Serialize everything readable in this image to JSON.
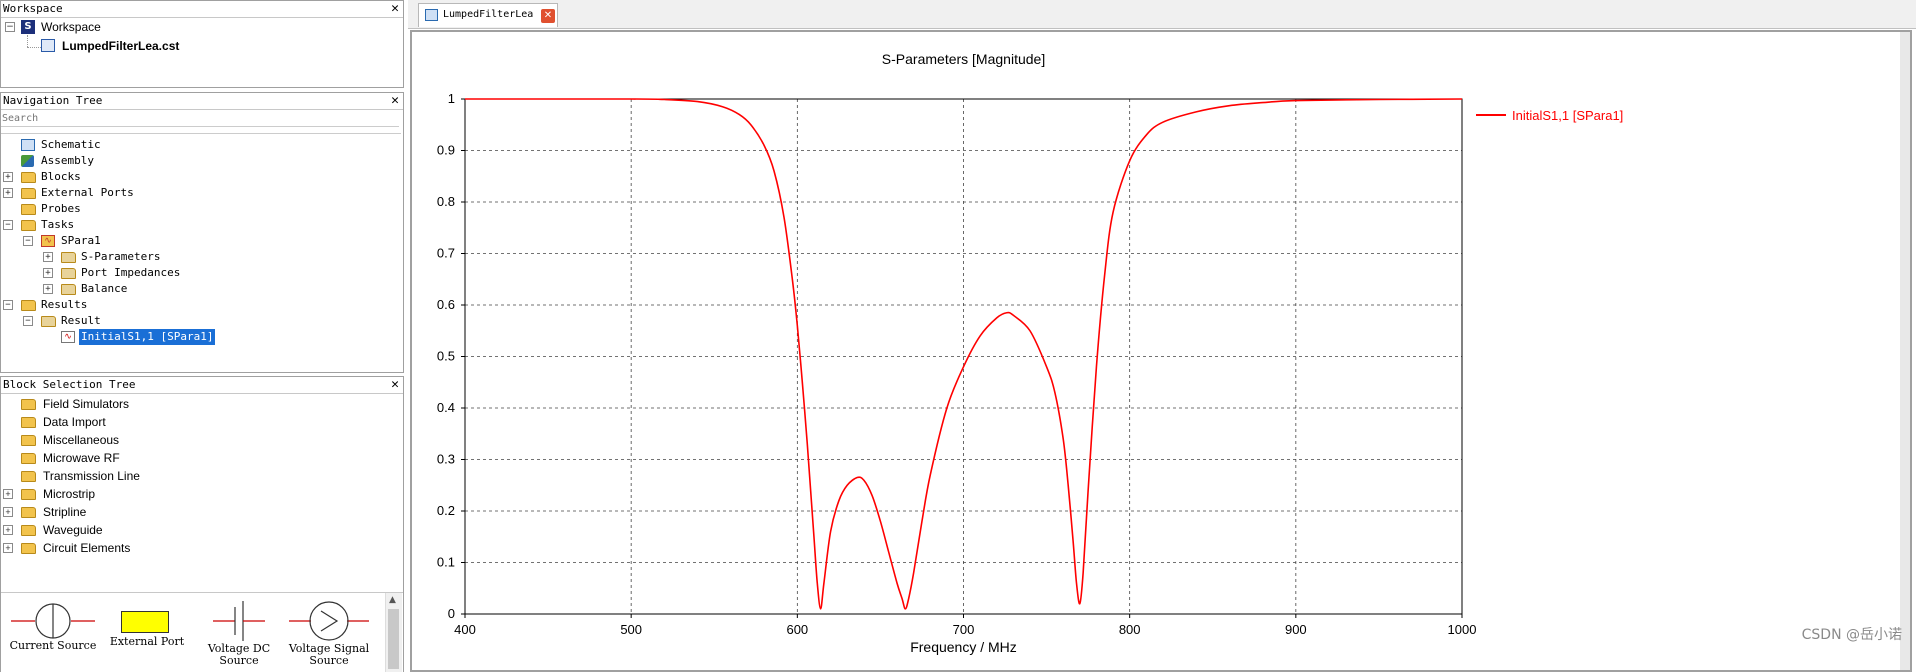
{
  "workspace_panel": {
    "title": "Workspace",
    "root_label": "Workspace",
    "file_label": "LumpedFilterLea.cst"
  },
  "nav_panel": {
    "title": "Navigation Tree",
    "search_placeholder": "Search",
    "items": [
      {
        "label": "Schematic",
        "icon": "schematic-icon"
      },
      {
        "label": "Assembly",
        "icon": "assembly-icon"
      },
      {
        "label": "Blocks",
        "icon": "folder-icon"
      },
      {
        "label": "External Ports",
        "icon": "folder-icon"
      },
      {
        "label": "Probes",
        "icon": "folder-icon"
      },
      {
        "label": "Tasks",
        "icon": "folder-icon"
      },
      {
        "label": "SPara1",
        "icon": "task-icon"
      },
      {
        "label": "S-Parameters",
        "icon": "result-folder-icon"
      },
      {
        "label": "Port Impedances",
        "icon": "result-folder-icon"
      },
      {
        "label": "Balance",
        "icon": "result-folder-icon"
      },
      {
        "label": "Results",
        "icon": "folder-icon"
      },
      {
        "label": "Result",
        "icon": "result-folder-icon"
      },
      {
        "label": "InitialS1,1 [SPara1]",
        "icon": "curve-icon"
      }
    ]
  },
  "block_panel": {
    "title": "Block Selection Tree",
    "items": [
      {
        "label": "Field Simulators"
      },
      {
        "label": "Data Import"
      },
      {
        "label": "Miscellaneous"
      },
      {
        "label": "Microwave RF"
      },
      {
        "label": "Transmission Line"
      },
      {
        "label": "Microstrip"
      },
      {
        "label": "Stripline"
      },
      {
        "label": "Waveguide"
      },
      {
        "label": "Circuit Elements"
      }
    ],
    "palette": [
      {
        "label": "Current Source"
      },
      {
        "label": "External Port"
      },
      {
        "label": "Voltage DC Source"
      },
      {
        "label": "Voltage Signal Source"
      }
    ]
  },
  "editor_tab": {
    "label": "LumpedFilterLea"
  },
  "watermark": "CSDN @岳小诺",
  "colors": {
    "curve": "#ff0000",
    "selection": "#1a6fd6",
    "folder": "#f2c34c"
  },
  "chart_data": {
    "type": "line",
    "title": "S-Parameters [Magnitude]",
    "xlabel": "Frequency / MHz",
    "ylabel": "",
    "xlim": [
      400,
      1000
    ],
    "ylim": [
      0,
      1
    ],
    "xticks": [
      400,
      500,
      600,
      700,
      800,
      900,
      1000
    ],
    "yticks": [
      0,
      0.1,
      0.2,
      0.3,
      0.4,
      0.5,
      0.6,
      0.7,
      0.8,
      0.9,
      1
    ],
    "grid": true,
    "legend_position": "top-right",
    "series": [
      {
        "name": "InitialS1,1 [SPara1]",
        "color": "#ff0000",
        "x": [
          400,
          500,
          520,
          540,
          555,
          565,
          572,
          580,
          586,
          592,
          597,
          600,
          603,
          606,
          608,
          610,
          612,
          614,
          616,
          620,
          625,
          630,
          636,
          640,
          645,
          650,
          655,
          660,
          663,
          665,
          667,
          670,
          675,
          680,
          690,
          700,
          710,
          720,
          726,
          730,
          740,
          750,
          755,
          760,
          763,
          766,
          768,
          770,
          772,
          775,
          780,
          785,
          790,
          800,
          810,
          820,
          840,
          860,
          880,
          900,
          950,
          1000
        ],
        "y": [
          1,
          1,
          0.999,
          0.995,
          0.985,
          0.97,
          0.95,
          0.91,
          0.86,
          0.77,
          0.65,
          0.56,
          0.45,
          0.33,
          0.24,
          0.15,
          0.06,
          0.01,
          0.06,
          0.16,
          0.22,
          0.25,
          0.265,
          0.26,
          0.23,
          0.18,
          0.12,
          0.06,
          0.03,
          0.01,
          0.03,
          0.08,
          0.18,
          0.27,
          0.4,
          0.48,
          0.54,
          0.575,
          0.585,
          0.58,
          0.55,
          0.48,
          0.43,
          0.34,
          0.25,
          0.14,
          0.06,
          0.02,
          0.08,
          0.24,
          0.48,
          0.66,
          0.78,
          0.88,
          0.93,
          0.955,
          0.975,
          0.987,
          0.993,
          0.997,
          0.999,
          1
        ]
      }
    ]
  }
}
